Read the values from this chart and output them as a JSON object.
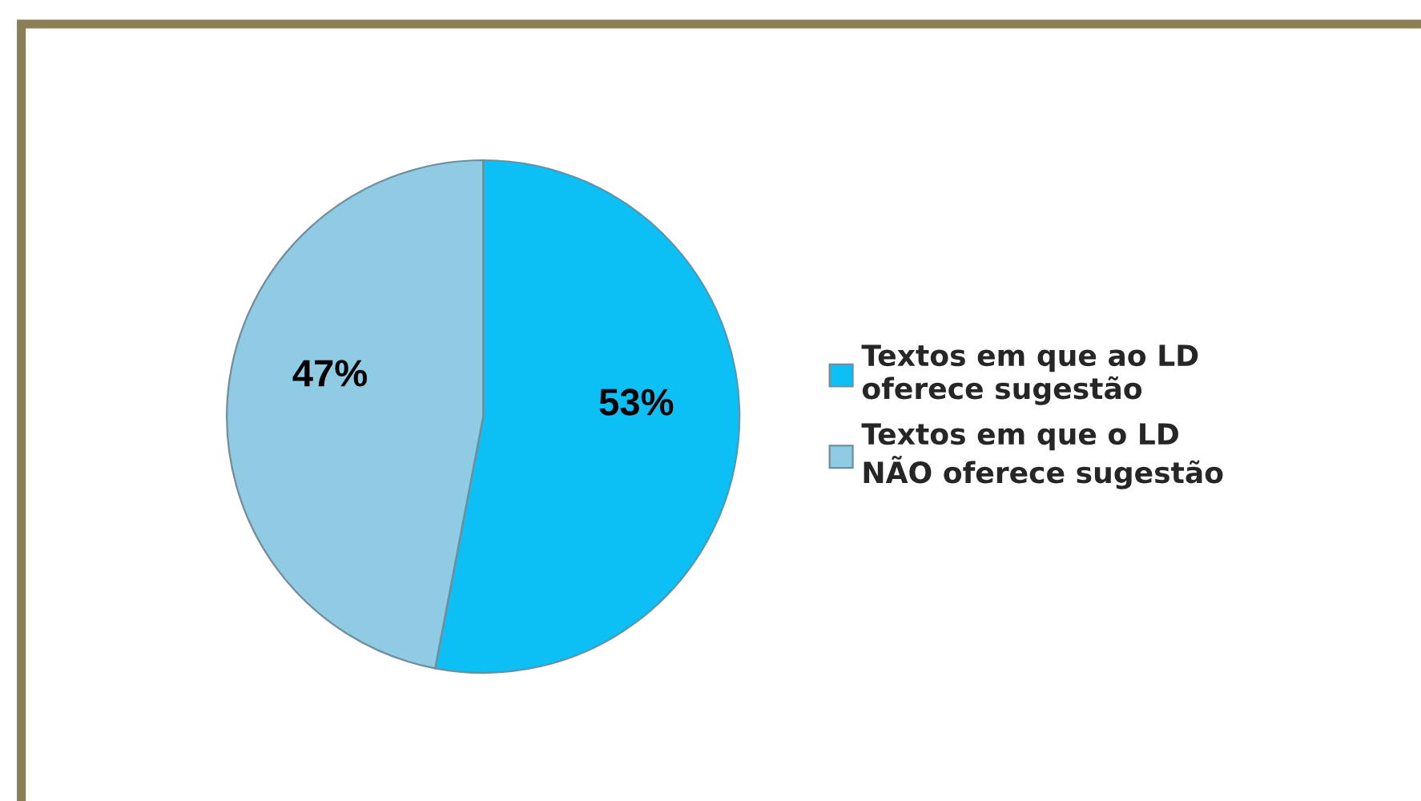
{
  "chart_data": {
    "type": "pie",
    "categories": [
      "Textos em que ao LD oferece sugestão",
      "Textos em que o LD NÃO oferece sugestão"
    ],
    "values": [
      53,
      47
    ],
    "colors": [
      "#0cbff5",
      "#8fcbe3"
    ],
    "value_labels": [
      "53%",
      "47%"
    ],
    "legend": "right"
  }
}
